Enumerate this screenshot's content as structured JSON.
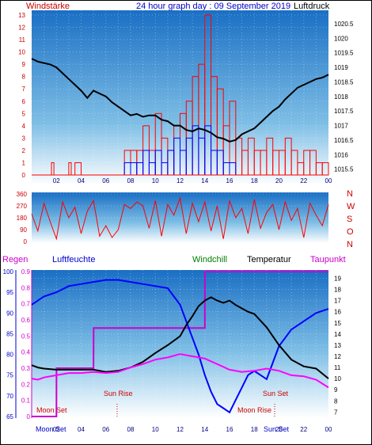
{
  "header": {
    "left_label": "Windstärke",
    "title": "24 hour graph day : 09 September 2019",
    "right_label": "Luftdruck"
  },
  "legend": {
    "regen": "Regen",
    "luftfeuchte": "Luftfeuchte",
    "windchill": "Windchill",
    "temperatur": "Temperatur",
    "taupunkt": "Taupunkt"
  },
  "colors": {
    "wind": "#ff0000",
    "gust": "#0000ff",
    "pressure": "#000000",
    "direction": "#ff0000",
    "temperature": "#000000",
    "windchill": "#008000",
    "dewpoint": "#ff00ff",
    "humidity": "#0000ff",
    "rain": "#cc00cc",
    "panel_top": "#1a6fc4",
    "panel_bottom": "#ffffff"
  },
  "compass_letters": [
    "N",
    "W",
    "S",
    "O",
    "N"
  ],
  "annotations": {
    "moon_set": "Moon Set",
    "sun_rise": "Sun Rise",
    "sun_set": "Sun Set",
    "moon_rise": "Moon Rise",
    "bottom_moon_set": "Moon Set",
    "bottom_sun_set": "Sun Set"
  },
  "chart_data": [
    {
      "type": "bar",
      "name": "wind_pressure",
      "x_ticks": [
        "02",
        "04",
        "06",
        "08",
        "10",
        "12",
        "14",
        "16",
        "18",
        "20",
        "22",
        "00"
      ],
      "y_left_ticks": [
        "0",
        "1",
        "2",
        "3",
        "4",
        "5",
        "6",
        "7",
        "8",
        "9",
        "10",
        "11",
        "12",
        "13"
      ],
      "y_right_ticks": [
        "1015.5",
        "1016",
        "1016.5",
        "1017",
        "1017.5",
        "1018",
        "1018.5",
        "1019",
        "1019.5",
        "1020",
        "1020.5"
      ],
      "ylim_left": [
        0,
        13
      ],
      "ylim_right": [
        1015.3,
        1020.8
      ],
      "xlim": [
        0,
        24
      ],
      "pressure": {
        "x": [
          0,
          0.5,
          1,
          1.5,
          2,
          2.5,
          3,
          3.5,
          4,
          4.5,
          5,
          5.5,
          6,
          6.5,
          7,
          7.5,
          8,
          8.5,
          9,
          9.5,
          10,
          10.5,
          11,
          11.5,
          12,
          12.5,
          13,
          13.5,
          14,
          14.5,
          15,
          15.5,
          16,
          16.5,
          17,
          17.5,
          18,
          18.5,
          19,
          19.5,
          20,
          20.5,
          21,
          21.5,
          22,
          22.5,
          23,
          23.5,
          24
        ],
        "y": [
          1019.3,
          1019.2,
          1019.15,
          1019.1,
          1019.0,
          1018.8,
          1018.6,
          1018.4,
          1018.2,
          1017.95,
          1018.2,
          1018.1,
          1018.0,
          1017.8,
          1017.65,
          1017.5,
          1017.35,
          1017.4,
          1017.3,
          1017.35,
          1017.35,
          1017.2,
          1017.15,
          1017.0,
          1017.0,
          1016.85,
          1016.8,
          1016.9,
          1016.85,
          1016.75,
          1016.6,
          1016.55,
          1016.45,
          1016.5,
          1016.7,
          1016.8,
          1016.9,
          1017.1,
          1017.3,
          1017.5,
          1017.65,
          1017.9,
          1018.1,
          1018.3,
          1018.4,
          1018.5,
          1018.6,
          1018.65,
          1018.75
        ]
      },
      "wind": {
        "x": [
          0,
          1,
          1.6,
          1.8,
          2,
          2.5,
          3,
          3.2,
          3.5,
          4,
          4.5,
          5,
          6,
          7,
          7.5,
          8,
          8.5,
          9,
          9.5,
          10,
          10.5,
          11,
          11.5,
          12,
          12.5,
          13,
          13.5,
          14,
          14.5,
          15,
          15.5,
          16,
          16.5,
          17,
          17.5,
          18,
          18.5,
          19,
          19.5,
          20,
          20.5,
          21,
          21.5,
          22,
          22.5,
          23,
          23.5,
          24
        ],
        "y": [
          0,
          0,
          1,
          0,
          0,
          0,
          1,
          0,
          1,
          0,
          0,
          0,
          0,
          0,
          2,
          2,
          2,
          4,
          2,
          5,
          3,
          2,
          4,
          5,
          6,
          8,
          9,
          13,
          8,
          7,
          4,
          6,
          3,
          2,
          3,
          2,
          2,
          3,
          2,
          2,
          3,
          2,
          1,
          2,
          2,
          1,
          1,
          0
        ]
      },
      "gust": {
        "x": [
          0,
          7,
          7.5,
          8,
          8.5,
          9,
          9.5,
          10,
          10.5,
          11,
          11.5,
          12,
          12.5,
          13,
          13.5,
          14,
          14.5,
          15,
          15.5,
          16,
          16.5,
          17,
          17.5,
          18,
          19,
          24
        ],
        "y": [
          0,
          0,
          1,
          1,
          1,
          2,
          1,
          2,
          1,
          2,
          3,
          2,
          3,
          4,
          3,
          4,
          2,
          2,
          1,
          1,
          0,
          0,
          0,
          0,
          0,
          0
        ]
      }
    },
    {
      "type": "line",
      "name": "wind_direction",
      "y_ticks": [
        "0",
        "90",
        "180",
        "270",
        "360"
      ],
      "ylim": [
        0,
        360
      ],
      "xlim": [
        0,
        24
      ],
      "direction": {
        "x": [
          0,
          0.5,
          1,
          1.5,
          2,
          2.5,
          3,
          3.5,
          4,
          4.5,
          5,
          5.5,
          6,
          6.5,
          7,
          7.5,
          8,
          8.5,
          9,
          9.5,
          10,
          10.5,
          11,
          11.5,
          12,
          12.5,
          13,
          13.5,
          14,
          14.5,
          15,
          15.5,
          16,
          16.5,
          17,
          17.5,
          18,
          18.5,
          19,
          19.5,
          20,
          20.5,
          21,
          21.5,
          22,
          22.5,
          23,
          23.5,
          24
        ],
        "y": [
          210,
          80,
          290,
          150,
          20,
          300,
          180,
          260,
          60,
          230,
          310,
          40,
          120,
          30,
          90,
          280,
          250,
          300,
          270,
          100,
          310,
          40,
          280,
          200,
          330,
          60,
          290,
          150,
          300,
          80,
          270,
          20,
          310,
          180,
          250,
          60,
          320,
          100,
          220,
          280,
          90,
          300,
          160,
          250,
          30,
          290,
          200,
          120,
          280
        ]
      }
    },
    {
      "type": "line",
      "name": "temperature_humidity",
      "xlim": [
        0,
        24
      ],
      "humidity_ticks": [
        "65",
        "70",
        "75",
        "80",
        "85",
        "90",
        "95",
        "100"
      ],
      "humidity_lim": [
        65,
        100
      ],
      "rain_ticks": [
        "0",
        "0.1",
        "0.2",
        "0.3",
        "0.4",
        "0.5",
        "0.6",
        "0.7",
        "0.8",
        "0.9"
      ],
      "rain_lim": [
        0,
        0.9
      ],
      "temp_ticks": [
        "7",
        "8",
        "9",
        "10",
        "11",
        "12",
        "13",
        "14",
        "15",
        "16",
        "17",
        "18",
        "19"
      ],
      "temp_lim": [
        6.6,
        19.6
      ],
      "temperature": {
        "x": [
          0,
          0.5,
          1,
          2,
          3,
          4,
          5,
          6,
          7,
          8,
          9,
          10,
          11,
          12,
          12.5,
          13,
          13.5,
          14,
          14.5,
          15,
          15.5,
          16,
          16.5,
          17,
          17.5,
          18,
          19,
          20,
          21,
          22,
          23,
          24
        ],
        "y": [
          11.2,
          11.0,
          10.9,
          10.8,
          10.8,
          10.8,
          10.8,
          10.6,
          10.7,
          11.0,
          11.5,
          12.3,
          13.0,
          13.8,
          14.8,
          15.6,
          16.5,
          17.0,
          17.3,
          17.0,
          16.8,
          17.0,
          16.6,
          16.3,
          16.0,
          15.8,
          14.6,
          13.0,
          11.7,
          11.1,
          10.9,
          10.0
        ]
      },
      "dewpoint": {
        "x": [
          0,
          0.5,
          1,
          2,
          3,
          4,
          5,
          6,
          7,
          8,
          9,
          10,
          11,
          12,
          13,
          14,
          15,
          16,
          17,
          18,
          19,
          20,
          21,
          22,
          23,
          24
        ],
        "y": [
          10.0,
          9.9,
          10.1,
          10.3,
          10.5,
          10.5,
          10.6,
          10.5,
          10.6,
          11.0,
          11.3,
          11.7,
          11.9,
          12.2,
          12.0,
          11.8,
          11.3,
          10.8,
          10.6,
          10.7,
          10.9,
          10.7,
          10.3,
          10.2,
          9.9,
          9.2
        ]
      },
      "humidity": {
        "x": [
          0,
          0.5,
          1,
          2,
          3,
          4,
          5,
          6,
          7,
          8,
          9,
          10,
          11,
          11.5,
          12,
          12.5,
          13,
          13.5,
          14,
          14.5,
          15,
          15.5,
          16,
          16.5,
          17,
          17.5,
          18,
          18.5,
          19,
          19.5,
          20,
          21,
          22,
          23,
          24
        ],
        "y": [
          92,
          93,
          94,
          95,
          96.5,
          97,
          97.5,
          98,
          98,
          97.5,
          97,
          96.5,
          96,
          94,
          92,
          88,
          84,
          80,
          75,
          71,
          68,
          67,
          66,
          69,
          72,
          75,
          76,
          75,
          74,
          78,
          82,
          86,
          88,
          90,
          91
        ]
      },
      "rain": {
        "x": [
          0,
          2,
          2.01,
          5,
          5.01,
          12.5,
          12.51,
          14,
          14.01,
          24
        ],
        "y": [
          0,
          0,
          0.3,
          0.3,
          0.55,
          0.55,
          0.55,
          0.55,
          0.9,
          0.9
        ]
      }
    }
  ]
}
